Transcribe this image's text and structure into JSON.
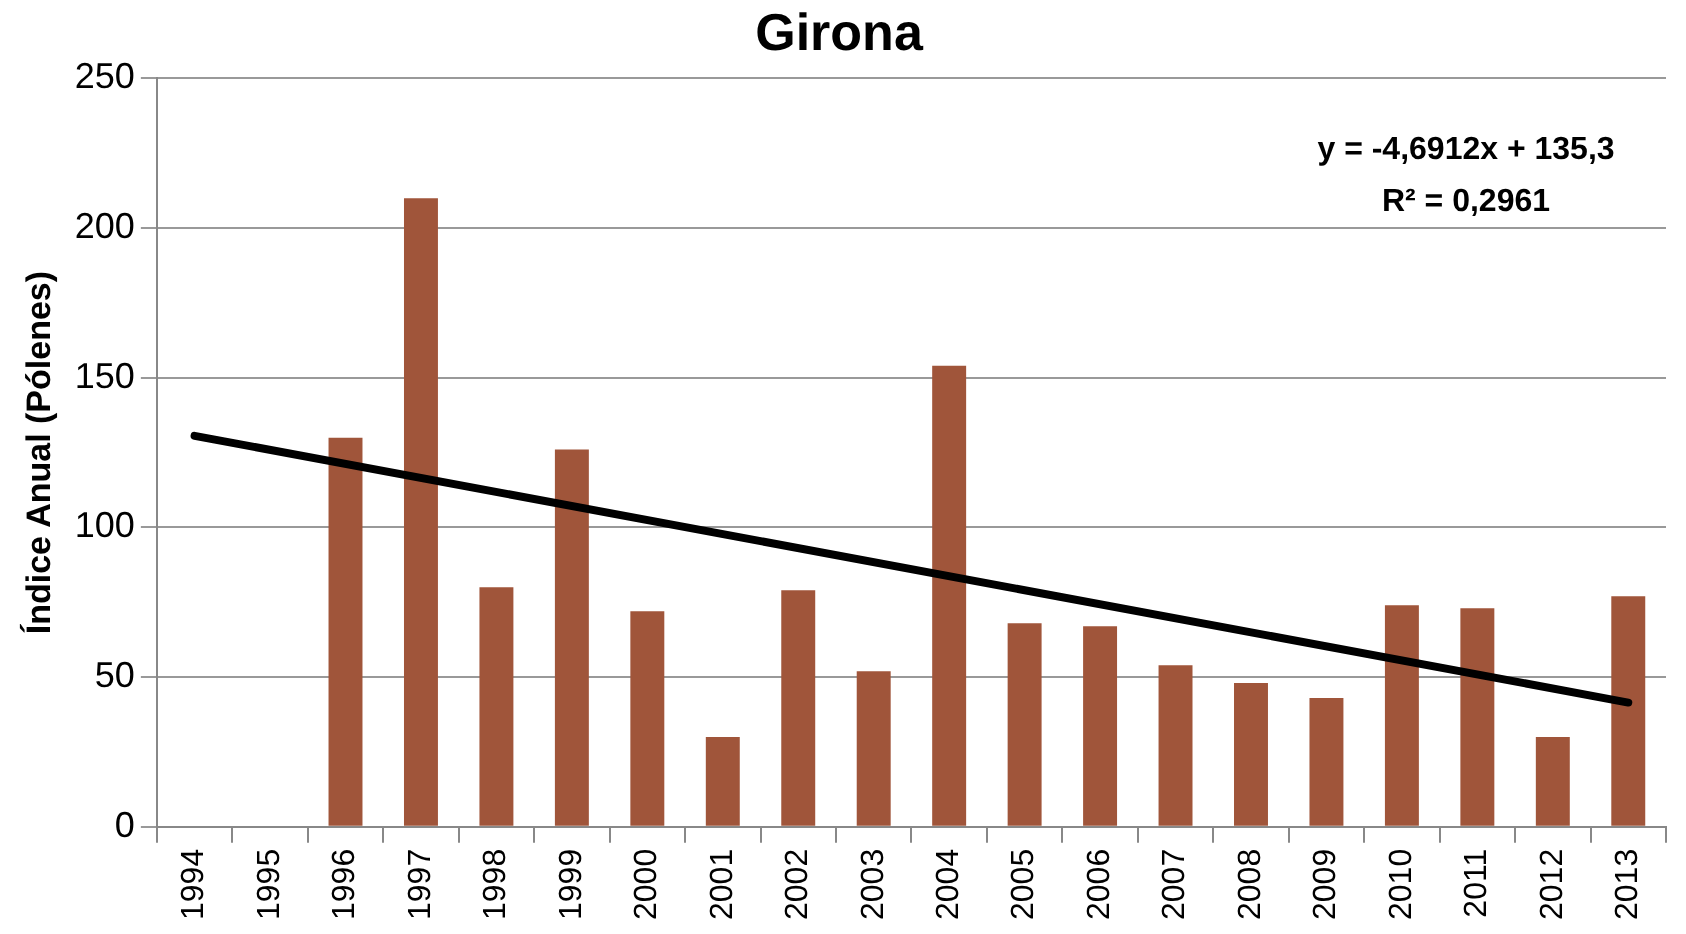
{
  "chart_data": {
    "type": "bar",
    "title": "Girona",
    "ylabel": "Índice Anual (Pólenes)",
    "categories": [
      "1994",
      "1995",
      "1996",
      "1997",
      "1998",
      "1999",
      "2000",
      "2001",
      "2002",
      "2003",
      "2004",
      "2005",
      "2006",
      "2007",
      "2008",
      "2009",
      "2010",
      "2011",
      "2012",
      "2013"
    ],
    "series": [
      {
        "color": "#a0553a",
        "values": [
          null,
          null,
          130,
          210,
          80,
          126,
          72,
          30,
          79,
          52,
          154,
          68,
          67,
          54,
          48,
          43,
          74,
          73,
          30,
          77
        ]
      },
      {
        "type": "line",
        "color": "#000000",
        "values": [
          130.6,
          null,
          null,
          null,
          null,
          null,
          null,
          null,
          null,
          null,
          null,
          null,
          null,
          null,
          null,
          null,
          null,
          null,
          null,
          41.5
        ]
      }
    ],
    "annotations": [
      "y = -4,6912x + 135,3",
      "R² = 0,2961"
    ],
    "ylim": [
      0,
      250
    ],
    "yticks": [
      0,
      50,
      100,
      150,
      200,
      250
    ],
    "grid": "y",
    "legend": false
  }
}
